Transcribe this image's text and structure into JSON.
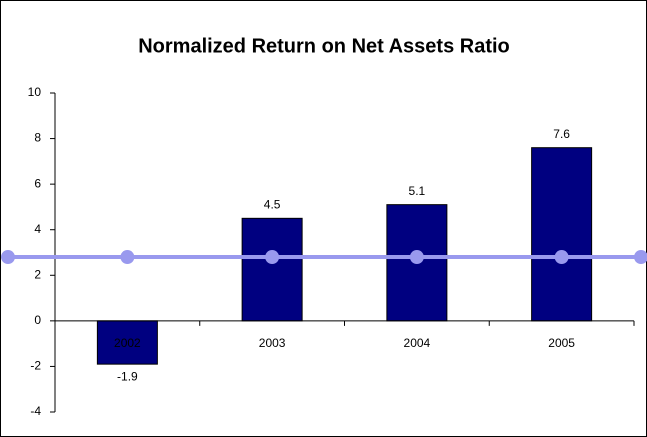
{
  "chart_data": {
    "type": "bar",
    "title": "Normalized Return on Net Assets Ratio",
    "categories": [
      "2002",
      "2003",
      "2004",
      "2005"
    ],
    "series": [
      {
        "type": "bar",
        "color": "#000080",
        "values": [
          -1.9,
          4.5,
          5.1,
          7.6
        ]
      },
      {
        "type": "line",
        "color": "#9999ee",
        "values": [
          2.8,
          2.8,
          2.8,
          2.8
        ]
      }
    ],
    "ylim": [
      -4,
      10
    ],
    "yticks": [
      -4,
      -2,
      0,
      2,
      4,
      6,
      8,
      10
    ],
    "grid": false
  }
}
